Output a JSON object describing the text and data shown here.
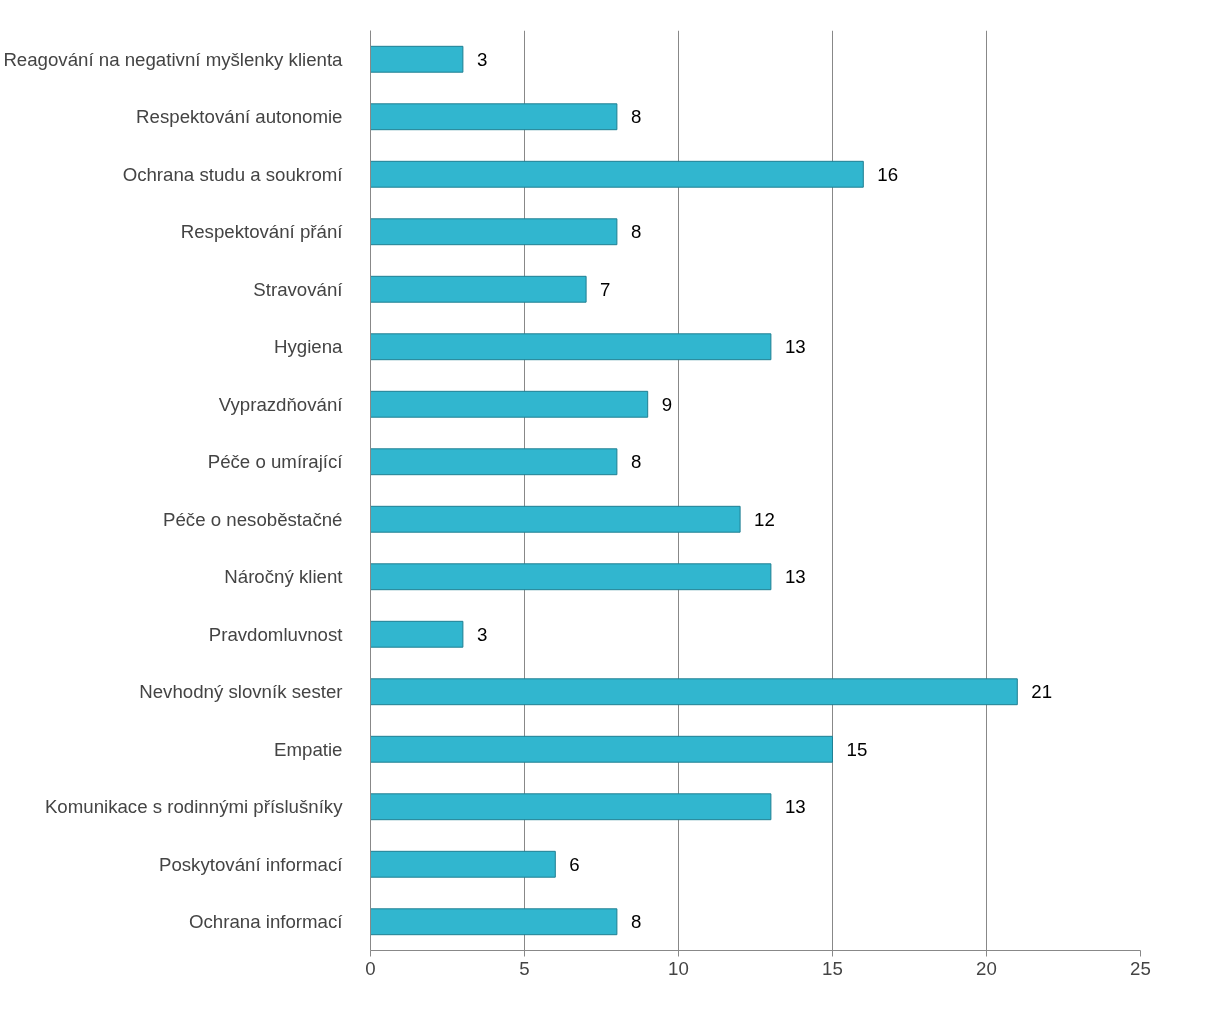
{
  "chart_data": {
    "type": "bar",
    "orientation": "horizontal",
    "categories": [
      "Reagování na negativní myšlenky klienta",
      "Respektování autonomie",
      "Ochrana studu a soukromí",
      "Respektování přání",
      "Stravování",
      "Hygiena",
      "Vyprazdňování",
      "Péče o umírající",
      "Péče o nesoběstačné",
      "Náročný klient",
      "Pravdomluvnost",
      "Nevhodný slovník sester",
      "Empatie",
      "Komunikace s rodinnými příslušníky",
      "Poskytování informací",
      "Ochrana informací"
    ],
    "values": [
      3,
      8,
      16,
      8,
      7,
      13,
      9,
      8,
      12,
      13,
      3,
      21,
      15,
      13,
      6,
      8
    ],
    "color": "#31b6cf",
    "xlim": [
      0,
      25
    ],
    "xticks": [
      0,
      5,
      10,
      15,
      20,
      25
    ],
    "grid": "x",
    "data_labels": true
  }
}
